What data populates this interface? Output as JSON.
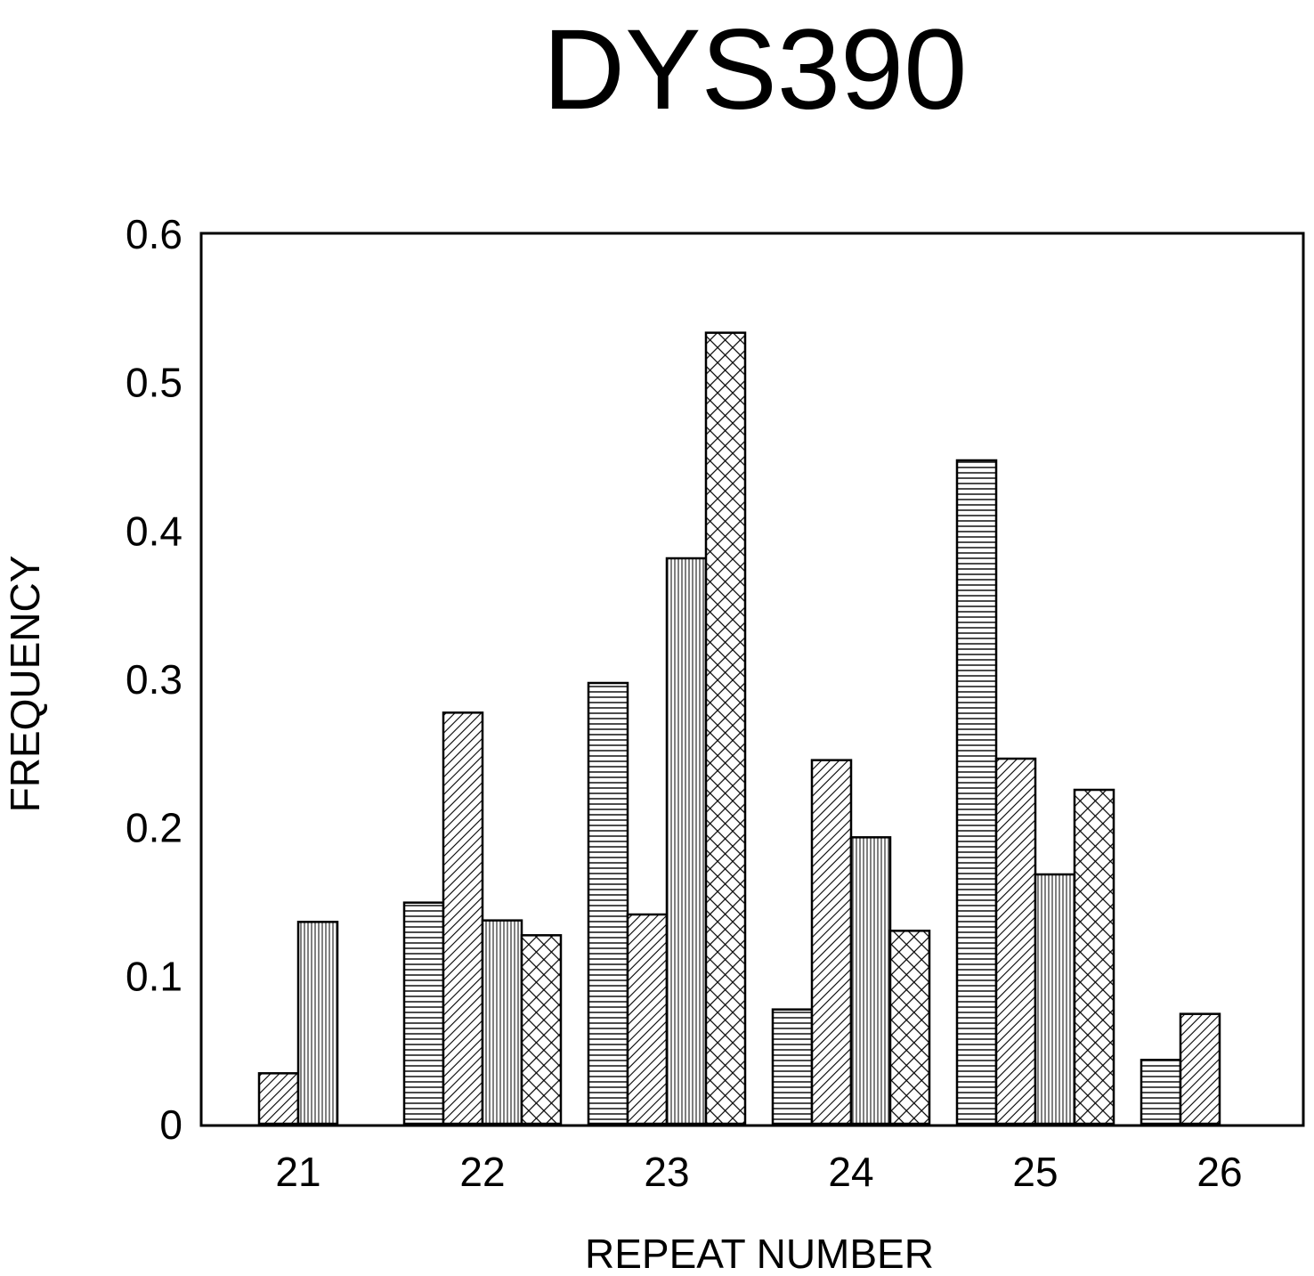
{
  "chart_data": {
    "type": "bar",
    "title": "DYS390",
    "xlabel": "REPEAT NUMBER",
    "ylabel": "FREQUENCY",
    "ylim": [
      0,
      0.6
    ],
    "yticks": [
      "0",
      "0.1",
      "0.2",
      "0.3",
      "0.4",
      "0.5",
      "0.6"
    ],
    "categories": [
      "21",
      "22",
      "23",
      "24",
      "25",
      "26"
    ],
    "grid": false,
    "legend": "none",
    "series": [
      {
        "pattern": "horizontal",
        "values": [
          0,
          0.149,
          0.297,
          0.077,
          0.447,
          0.043
        ]
      },
      {
        "pattern": "diagonal",
        "values": [
          0.034,
          0.277,
          0.141,
          0.245,
          0.246,
          0.074
        ]
      },
      {
        "pattern": "vertical",
        "values": [
          0.136,
          0.137,
          0.381,
          0.193,
          0.168,
          0
        ]
      },
      {
        "pattern": "crosshatch",
        "values": [
          0,
          0.127,
          0.533,
          0.13,
          0.225,
          0
        ]
      }
    ]
  }
}
